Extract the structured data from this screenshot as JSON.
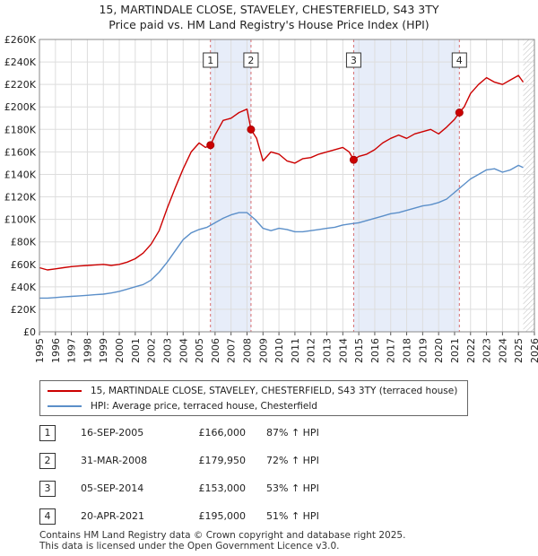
{
  "title_line1": "15, MARTINDALE CLOSE, STAVELEY, CHESTERFIELD, S43 3TY",
  "title_line2": "Price paid vs. HM Land Registry's House Price Index (HPI)",
  "chart_data": {
    "type": "line",
    "title": "15, MARTINDALE CLOSE, STAVELEY, CHESTERFIELD, S43 3TY — Price paid vs. HM Land Registry's House Price Index (HPI)",
    "xlabel": "",
    "ylabel": "",
    "xlim": [
      1995,
      2026
    ],
    "ylim": [
      0,
      260000
    ],
    "x_ticks": [
      1995,
      1996,
      1997,
      1998,
      1999,
      2000,
      2001,
      2002,
      2003,
      2004,
      2005,
      2006,
      2007,
      2008,
      2009,
      2010,
      2011,
      2012,
      2013,
      2014,
      2015,
      2016,
      2017,
      2018,
      2019,
      2020,
      2021,
      2022,
      2023,
      2024,
      2025,
      2026
    ],
    "y_ticks": [
      0,
      20000,
      40000,
      60000,
      80000,
      100000,
      120000,
      140000,
      160000,
      180000,
      200000,
      220000,
      240000,
      260000
    ],
    "y_tick_labels": [
      "£0",
      "£20K",
      "£40K",
      "£60K",
      "£80K",
      "£100K",
      "£120K",
      "£140K",
      "£160K",
      "£180K",
      "£200K",
      "£220K",
      "£240K",
      "£260K"
    ],
    "grid": true,
    "series": [
      {
        "name": "15, MARTINDALE CLOSE, STAVELEY, CHESTERFIELD, S43 3TY (terraced house)",
        "color": "#cc0000",
        "x": [
          1995.0,
          1995.5,
          1996.0,
          1996.5,
          1997.0,
          1997.5,
          1998.0,
          1998.5,
          1999.0,
          1999.5,
          2000.0,
          2000.5,
          2001.0,
          2001.5,
          2002.0,
          2002.5,
          2003.0,
          2003.5,
          2004.0,
          2004.5,
          2005.0,
          2005.4,
          2005.71,
          2006.0,
          2006.5,
          2007.0,
          2007.5,
          2008.0,
          2008.25,
          2008.6,
          2009.0,
          2009.5,
          2010.0,
          2010.5,
          2011.0,
          2011.5,
          2012.0,
          2012.5,
          2013.0,
          2013.5,
          2014.0,
          2014.4,
          2014.68,
          2015.0,
          2015.5,
          2016.0,
          2016.5,
          2017.0,
          2017.5,
          2018.0,
          2018.5,
          2019.0,
          2019.5,
          2020.0,
          2020.5,
          2021.0,
          2021.3,
          2021.6,
          2022.0,
          2022.5,
          2023.0,
          2023.5,
          2024.0,
          2024.5,
          2025.0,
          2025.3
        ],
        "y": [
          57000,
          55000,
          56000,
          57000,
          58000,
          58500,
          59000,
          59500,
          60000,
          59000,
          60000,
          62000,
          65000,
          70000,
          78000,
          90000,
          110000,
          128000,
          145000,
          160000,
          168000,
          164000,
          166000,
          175000,
          188000,
          190000,
          195000,
          198000,
          179950,
          172000,
          152000,
          160000,
          158000,
          152000,
          150000,
          154000,
          155000,
          158000,
          160000,
          162000,
          164000,
          160000,
          153000,
          156000,
          158000,
          162000,
          168000,
          172000,
          175000,
          172000,
          176000,
          178000,
          180000,
          176000,
          182000,
          189000,
          195000,
          200000,
          212000,
          220000,
          226000,
          222000,
          220000,
          224000,
          228000,
          222000
        ]
      },
      {
        "name": "HPI: Average price, terraced house, Chesterfield",
        "color": "#5b8fc9",
        "x": [
          1995.0,
          1995.5,
          1996.0,
          1996.5,
          1997.0,
          1997.5,
          1998.0,
          1998.5,
          1999.0,
          1999.5,
          2000.0,
          2000.5,
          2001.0,
          2001.5,
          2002.0,
          2002.5,
          2003.0,
          2003.5,
          2004.0,
          2004.5,
          2005.0,
          2005.5,
          2006.0,
          2006.5,
          2007.0,
          2007.5,
          2008.0,
          2008.5,
          2009.0,
          2009.5,
          2010.0,
          2010.5,
          2011.0,
          2011.5,
          2012.0,
          2012.5,
          2013.0,
          2013.5,
          2014.0,
          2014.5,
          2015.0,
          2015.5,
          2016.0,
          2016.5,
          2017.0,
          2017.5,
          2018.0,
          2018.5,
          2019.0,
          2019.5,
          2020.0,
          2020.5,
          2021.0,
          2021.5,
          2022.0,
          2022.5,
          2023.0,
          2023.5,
          2024.0,
          2024.5,
          2025.0,
          2025.3
        ],
        "y": [
          30000,
          30000,
          30500,
          31000,
          31500,
          32000,
          32500,
          33000,
          33500,
          34500,
          36000,
          38000,
          40000,
          42000,
          46000,
          53000,
          62000,
          72000,
          82000,
          88000,
          91000,
          93000,
          97000,
          101000,
          104000,
          106000,
          106000,
          100000,
          92000,
          90000,
          92000,
          91000,
          89000,
          89000,
          90000,
          91000,
          92000,
          93000,
          95000,
          96000,
          97000,
          99000,
          101000,
          103000,
          105000,
          106000,
          108000,
          110000,
          112000,
          113000,
          115000,
          118000,
          124000,
          130000,
          136000,
          140000,
          144000,
          145000,
          142000,
          144000,
          148000,
          146000
        ]
      }
    ],
    "markers": [
      {
        "label": "1",
        "x": 2005.71,
        "y": 166000
      },
      {
        "label": "2",
        "x": 2008.25,
        "y": 179950
      },
      {
        "label": "3",
        "x": 2014.68,
        "y": 153000
      },
      {
        "label": "4",
        "x": 2021.3,
        "y": 195000
      }
    ],
    "shaded_ranges": [
      [
        2005.71,
        2008.25
      ],
      [
        2014.68,
        2021.3
      ]
    ],
    "hatched_from": 2025.3
  },
  "legend": {
    "property_label": "15, MARTINDALE CLOSE, STAVELEY, CHESTERFIELD, S43 3TY (terraced house)",
    "hpi_label": "HPI: Average price, terraced house, Chesterfield",
    "property_color": "#cc0000",
    "hpi_color": "#5b8fc9"
  },
  "transactions": [
    {
      "num": "1",
      "date": "16-SEP-2005",
      "price": "£166,000",
      "hpi": "87% ↑ HPI"
    },
    {
      "num": "2",
      "date": "31-MAR-2008",
      "price": "£179,950",
      "hpi": "72% ↑ HPI"
    },
    {
      "num": "3",
      "date": "05-SEP-2014",
      "price": "£153,000",
      "hpi": "53% ↑ HPI"
    },
    {
      "num": "4",
      "date": "20-APR-2021",
      "price": "£195,000",
      "hpi": "51% ↑ HPI"
    }
  ],
  "footer": {
    "line1": "Contains HM Land Registry data © Crown copyright and database right 2025.",
    "line2": "This data is licensed under the Open Government Licence v3.0."
  }
}
